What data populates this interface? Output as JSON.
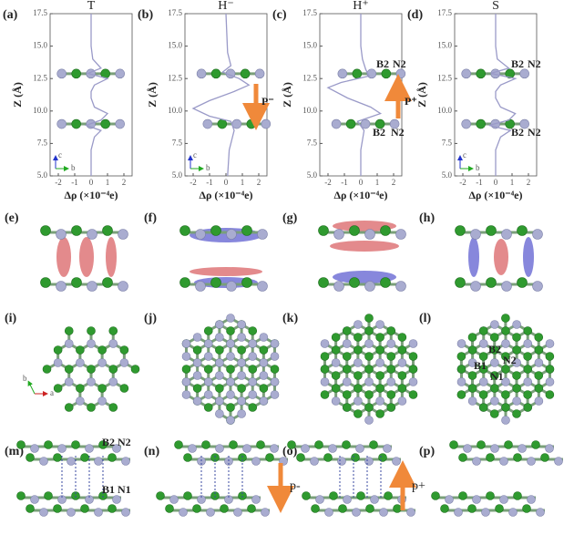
{
  "chart_data": [
    {
      "type": "line",
      "panel": "(a)",
      "title": "T",
      "xlabel": "Δρ (×10⁻⁴e)",
      "ylabel": "Z (Å)",
      "xlim": [
        -2.5,
        2.5
      ],
      "ylim": [
        5,
        17.5
      ],
      "xticks": [
        -2,
        -1,
        0,
        1,
        2
      ],
      "yticks": [
        {
          "value": 5,
          "label": "5.0"
        },
        {
          "value": 7.5,
          "label": "7.5"
        },
        {
          "value": 10,
          "label": "10.0"
        },
        {
          "value": 12.5,
          "label": "12.5"
        },
        {
          "value": 15,
          "label": "15.0"
        },
        {
          "value": 17.5,
          "label": "17.5"
        }
      ],
      "color": "#9a9ac8",
      "z": [
        5,
        7,
        8,
        8.5,
        8.9,
        9.3,
        9.8,
        10.3,
        11,
        11.5,
        12,
        12.5,
        12.9,
        13.3,
        14,
        15,
        17.5
      ],
      "values": [
        0,
        0,
        0.2,
        0.6,
        -0.3,
        0.6,
        1.0,
        0.2,
        0,
        0,
        0.2,
        1.0,
        -0.2,
        0.6,
        0.1,
        0,
        0
      ],
      "annotations": [
        {
          "text": "c"
        },
        {
          "text": "b"
        }
      ]
    },
    {
      "type": "line",
      "panel": "(b)",
      "title": "H⁻",
      "xlabel": "Δρ (×10⁻⁴e)",
      "ylabel": "Z (Å)",
      "xlim": [
        -2.5,
        2.5
      ],
      "ylim": [
        5,
        17.5
      ],
      "xticks": [
        -2,
        -1,
        0,
        1,
        2
      ],
      "yticks": [
        {
          "value": 5,
          "label": "5.0"
        },
        {
          "value": 7.5,
          "label": "7.5"
        },
        {
          "value": 10,
          "label": "10.0"
        },
        {
          "value": 12.5,
          "label": "12.5"
        },
        {
          "value": 15,
          "label": "15.0"
        },
        {
          "value": 17.5,
          "label": "17.5"
        }
      ],
      "color": "#9a9ac8",
      "z": [
        5,
        7,
        8.5,
        9.2,
        9.6,
        10.2,
        10.8,
        11.5,
        12.0,
        12.5,
        13.0,
        13.5,
        14.5,
        17.5
      ],
      "values": [
        0.1,
        0.2,
        0.5,
        0.3,
        -1.0,
        -2.0,
        -1.0,
        0.5,
        1.4,
        0.8,
        -0.2,
        0.3,
        0.1,
        0
      ],
      "annotations": [
        {
          "text": "P⁻"
        },
        {
          "text": "c"
        },
        {
          "text": "b"
        }
      ]
    },
    {
      "type": "line",
      "panel": "(c)",
      "title": "H⁺",
      "xlabel": "Δρ (×10⁻⁴e)",
      "ylabel": "Z (Å)",
      "xlim": [
        -2.5,
        2.5
      ],
      "ylim": [
        5,
        17.5
      ],
      "xticks": [
        -2,
        -1,
        0,
        1,
        2
      ],
      "yticks": [
        {
          "value": 5,
          "label": "5.0"
        },
        {
          "value": 7.5,
          "label": "7.5"
        },
        {
          "value": 10,
          "label": "10.0"
        },
        {
          "value": 12.5,
          "label": "12.5"
        },
        {
          "value": 15,
          "label": "15.0"
        },
        {
          "value": 17.5,
          "label": "17.5"
        }
      ],
      "color": "#9a9ac8",
      "z": [
        5,
        7,
        8.5,
        9.2,
        9.8,
        10.3,
        11,
        11.8,
        12.2,
        12.7,
        13.2,
        14,
        15,
        17.5
      ],
      "values": [
        0,
        0,
        0.2,
        -0.2,
        1.2,
        0.6,
        -0.8,
        -2.0,
        -1.2,
        0.5,
        0.3,
        0.1,
        0,
        0
      ],
      "annotations": [
        {
          "text": "B2"
        },
        {
          "text": "N2"
        },
        {
          "text": "P⁺"
        },
        {
          "text": "B2"
        },
        {
          "text": "N2"
        }
      ]
    },
    {
      "type": "line",
      "panel": "(d)",
      "title": "S",
      "xlabel": "Δρ (×10⁻⁴e)",
      "ylabel": "Z (Å)",
      "xlim": [
        -2.5,
        2.5
      ],
      "ylim": [
        5,
        17.5
      ],
      "xticks": [
        -2,
        -1,
        0,
        1,
        2
      ],
      "yticks": [
        {
          "value": 5,
          "label": "5.0"
        },
        {
          "value": 7.5,
          "label": "7.5"
        },
        {
          "value": 10,
          "label": "10.0"
        },
        {
          "value": 12.5,
          "label": "12.5"
        },
        {
          "value": 15,
          "label": "15.0"
        },
        {
          "value": 17.5,
          "label": "17.5"
        }
      ],
      "color": "#9a9ac8",
      "z": [
        5,
        7,
        8,
        8.5,
        8.9,
        9.3,
        9.8,
        10.3,
        11,
        11.5,
        12,
        12.5,
        12.9,
        13.3,
        14,
        15,
        17.5
      ],
      "values": [
        0,
        0,
        0.3,
        0.9,
        -0.4,
        0.8,
        1.2,
        0.3,
        0,
        0,
        0.3,
        1.2,
        -0.3,
        0.8,
        0.1,
        0,
        0
      ],
      "annotations": [
        {
          "text": "B2"
        },
        {
          "text": "N2"
        },
        {
          "text": "B2"
        },
        {
          "text": "N2"
        },
        {
          "text": "c"
        },
        {
          "text": "b"
        }
      ]
    }
  ],
  "panels": [
    {
      "label": "(e)"
    },
    {
      "label": "(f)"
    },
    {
      "label": "(g)"
    },
    {
      "label": "(h)"
    },
    {
      "label": "(i)",
      "texts": [
        "b",
        "a"
      ]
    },
    {
      "label": "(j)"
    },
    {
      "label": "(k)"
    },
    {
      "label": "(l)",
      "texts": [
        "B2",
        "N2",
        "B1",
        "N1"
      ]
    },
    {
      "label": "(m)",
      "texts": [
        "B2",
        "N2",
        "B1",
        "N1"
      ]
    },
    {
      "label": "(n)",
      "texts": [
        "p-"
      ]
    },
    {
      "label": "(o)",
      "texts": [
        "p+"
      ]
    },
    {
      "label": "(p)"
    }
  ]
}
